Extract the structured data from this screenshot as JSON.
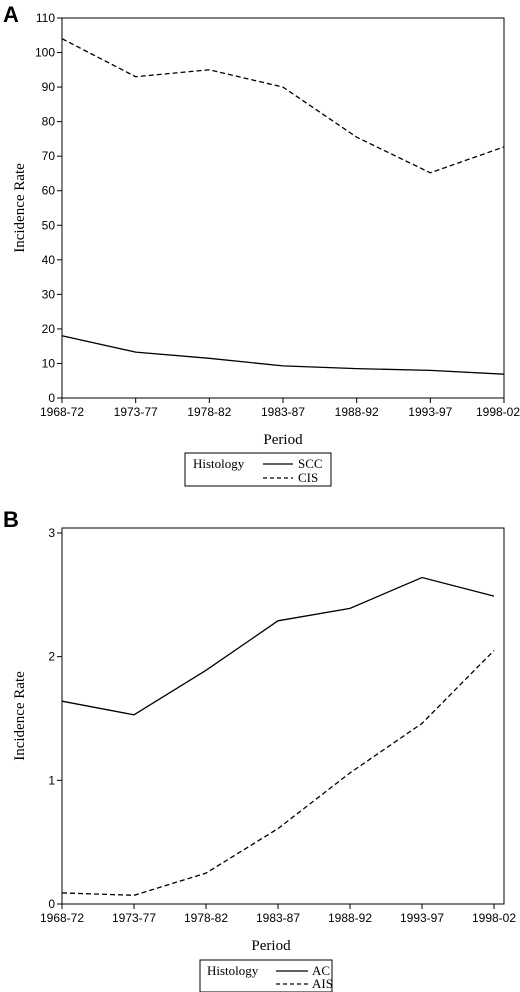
{
  "chart_data": [
    {
      "panel": "A",
      "type": "line",
      "categories": [
        "1968-72",
        "1973-77",
        "1978-82",
        "1983-87",
        "1988-92",
        "1993-97",
        "1998-02"
      ],
      "series": [
        {
          "name": "SCC",
          "style": "solid",
          "values": [
            18,
            13.3,
            11.5,
            9.3,
            8.5,
            8.0,
            6.9
          ]
        },
        {
          "name": "CIS",
          "style": "dashed",
          "values": [
            104,
            93,
            95,
            90,
            75.5,
            65.2,
            72.7
          ]
        }
      ],
      "xlabel": "Period",
      "ylabel": "Incidence Rate",
      "ylim": [
        0,
        110
      ],
      "yticks": [
        0,
        10,
        20,
        30,
        40,
        50,
        60,
        70,
        80,
        90,
        100,
        110
      ],
      "legend": {
        "title": "Histology",
        "position": "bottom-center"
      }
    },
    {
      "panel": "B",
      "type": "line",
      "categories": [
        "1968-72",
        "1973-77",
        "1978-82",
        "1983-87",
        "1988-92",
        "1993-97",
        "1998-02"
      ],
      "series": [
        {
          "name": "AC",
          "style": "solid",
          "values": [
            1.64,
            1.53,
            1.89,
            2.29,
            2.39,
            2.64,
            2.49
          ]
        },
        {
          "name": "AIS",
          "style": "dashed",
          "values": [
            0.09,
            0.07,
            0.25,
            0.61,
            1.06,
            1.46,
            2.05
          ]
        }
      ],
      "xlabel": "Period",
      "ylabel": "Incidence Rate",
      "ylim": [
        0,
        3
      ],
      "yticks": [
        0,
        1,
        2,
        3
      ],
      "legend": {
        "title": "Histology",
        "position": "bottom-center"
      }
    }
  ]
}
